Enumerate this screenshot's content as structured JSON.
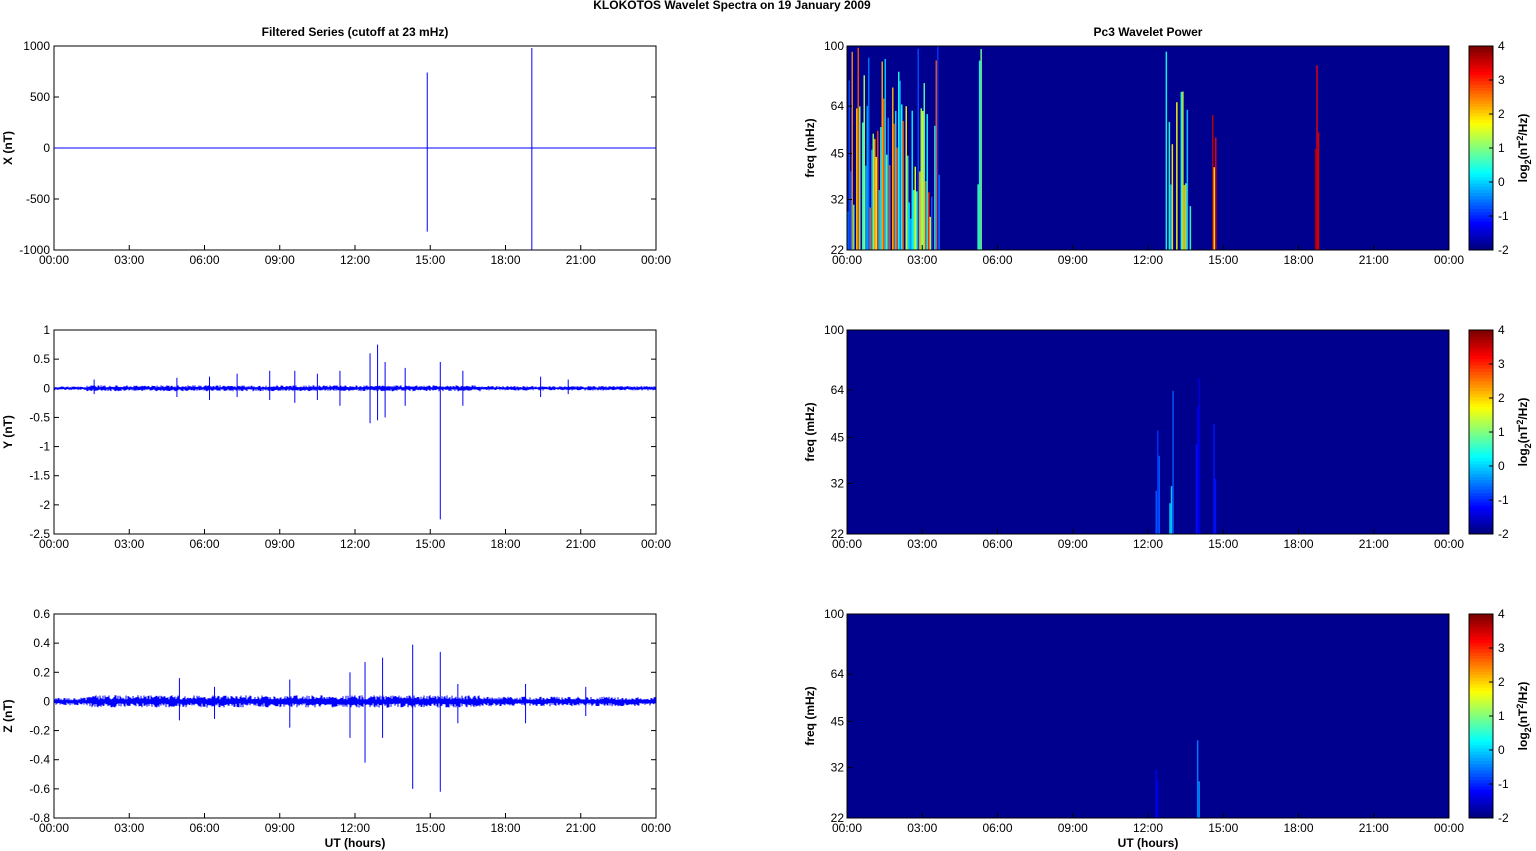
{
  "figure_title": "KLOKOTOS Wavelet Spectra on 19 January   2009",
  "left_title": "Filtered Series (cutoff at 23 mHz)",
  "right_title": "Pc3 Wavelet Power",
  "x_axis_label": "UT (hours)",
  "colors": {
    "trace": "#0000ff",
    "heat_background": "#00008f",
    "axes": "#000000"
  },
  "chart_data": [
    {
      "type": "line",
      "ylabel": "X (nT)",
      "xlabel": "",
      "x_ticks": [
        "00:00",
        "03:00",
        "06:00",
        "09:00",
        "12:00",
        "15:00",
        "18:00",
        "21:00",
        "00:00"
      ],
      "xlim_hours": [
        0,
        24
      ],
      "ylim": [
        -1000,
        1000
      ],
      "y_ticks": [
        "1000",
        "500",
        "0",
        "-500",
        "-1000"
      ],
      "spikes": [
        {
          "hour": 14.88,
          "max": 740,
          "min": -820
        },
        {
          "hour": 19.05,
          "max": 980,
          "min": -1000
        },
        {
          "hour": 2.55,
          "max": 5,
          "min": -5
        }
      ],
      "baseline_noise_amplitude": 3
    },
    {
      "type": "line",
      "ylabel": "Y (nT)",
      "xlabel": "",
      "x_ticks": [
        "00:00",
        "03:00",
        "06:00",
        "09:00",
        "12:00",
        "15:00",
        "18:00",
        "21:00",
        "00:00"
      ],
      "xlim_hours": [
        0,
        24
      ],
      "ylim": [
        -2.5,
        1
      ],
      "y_ticks": [
        "1",
        "0.5",
        "0",
        "-0.5",
        "-1",
        "-1.5",
        "-2",
        "-2.5"
      ],
      "spikes": [
        {
          "hour": 1.6,
          "max": 0.15,
          "min": -0.1
        },
        {
          "hour": 4.9,
          "max": 0.18,
          "min": -0.15
        },
        {
          "hour": 6.2,
          "max": 0.2,
          "min": -0.2
        },
        {
          "hour": 7.3,
          "max": 0.25,
          "min": -0.15
        },
        {
          "hour": 8.6,
          "max": 0.3,
          "min": -0.2
        },
        {
          "hour": 9.6,
          "max": 0.3,
          "min": -0.25
        },
        {
          "hour": 10.5,
          "max": 0.25,
          "min": -0.2
        },
        {
          "hour": 11.4,
          "max": 0.3,
          "min": -0.3
        },
        {
          "hour": 12.6,
          "max": 0.6,
          "min": -0.6
        },
        {
          "hour": 12.9,
          "max": 0.75,
          "min": -0.55
        },
        {
          "hour": 13.2,
          "max": 0.45,
          "min": -0.5
        },
        {
          "hour": 14.0,
          "max": 0.35,
          "min": -0.3
        },
        {
          "hour": 15.4,
          "max": 0.45,
          "min": -2.25
        },
        {
          "hour": 16.3,
          "max": 0.3,
          "min": -0.3
        },
        {
          "hour": 19.4,
          "max": 0.2,
          "min": -0.15
        },
        {
          "hour": 20.5,
          "max": 0.15,
          "min": -0.1
        }
      ],
      "baseline_noise_amplitude": 0.03
    },
    {
      "type": "line",
      "ylabel": "Z (nT)",
      "xlabel": "UT (hours)",
      "x_ticks": [
        "00:00",
        "03:00",
        "06:00",
        "09:00",
        "12:00",
        "15:00",
        "18:00",
        "21:00",
        "00:00"
      ],
      "xlim_hours": [
        0,
        24
      ],
      "ylim": [
        -0.8,
        0.6
      ],
      "y_ticks": [
        "0.6",
        "0.4",
        "0.2",
        "0",
        "-0.2",
        "-0.4",
        "-0.6",
        "-0.8"
      ],
      "spikes": [
        {
          "hour": 5.0,
          "max": 0.16,
          "min": -0.13
        },
        {
          "hour": 6.4,
          "max": 0.1,
          "min": -0.12
        },
        {
          "hour": 9.4,
          "max": 0.15,
          "min": -0.18
        },
        {
          "hour": 11.8,
          "max": 0.2,
          "min": -0.25
        },
        {
          "hour": 12.4,
          "max": 0.27,
          "min": -0.42
        },
        {
          "hour": 13.1,
          "max": 0.3,
          "min": -0.25
        },
        {
          "hour": 14.3,
          "max": 0.39,
          "min": -0.6
        },
        {
          "hour": 15.4,
          "max": 0.34,
          "min": -0.62
        },
        {
          "hour": 16.1,
          "max": 0.12,
          "min": -0.15
        },
        {
          "hour": 18.8,
          "max": 0.12,
          "min": -0.15
        },
        {
          "hour": 21.2,
          "max": 0.1,
          "min": -0.1
        }
      ],
      "baseline_noise_amplitude": 0.025
    },
    {
      "type": "heatmap",
      "ylabel": "freq (mHz)",
      "xlabel": "",
      "x_ticks": [
        "00:00",
        "03:00",
        "06:00",
        "09:00",
        "12:00",
        "15:00",
        "18:00",
        "21:00",
        "00:00"
      ],
      "y_ticks": [
        "100",
        "64",
        "45",
        "32",
        "22"
      ],
      "ylim_mhz": [
        22,
        100
      ],
      "y_scale": "log",
      "colorbar_label": "log2(nT2/Hz)",
      "colorbar_ticks": [
        "4",
        "3",
        "2",
        "1",
        "0",
        "-1",
        "-2"
      ],
      "clim": [
        -2,
        4
      ],
      "colormap": "jet",
      "streaks": [
        {
          "hours": [
            0.0,
            3.7
          ],
          "value_range": [
            -1,
            3
          ],
          "density": 0.9
        },
        {
          "hours": [
            4.7,
            4.8
          ],
          "value_range": [
            -1,
            0
          ],
          "density": 0.5
        },
        {
          "hours": [
            5.2,
            5.35
          ],
          "value_range": [
            0,
            1
          ],
          "density": 1
        },
        {
          "hours": [
            12.7,
            13.7
          ],
          "value_range": [
            -0.5,
            2.5
          ],
          "density": 0.7
        },
        {
          "hours": [
            14.55,
            14.7
          ],
          "value_range": [
            1,
            4
          ],
          "density": 1
        },
        {
          "hours": [
            18.65,
            18.8
          ],
          "value_range": [
            3,
            4
          ],
          "density": 1
        }
      ]
    },
    {
      "type": "heatmap",
      "ylabel": "freq (mHz)",
      "xlabel": "",
      "x_ticks": [
        "00:00",
        "03:00",
        "06:00",
        "09:00",
        "12:00",
        "15:00",
        "18:00",
        "21:00",
        "00:00"
      ],
      "y_ticks": [
        "100",
        "64",
        "45",
        "32",
        "22"
      ],
      "ylim_mhz": [
        22,
        100
      ],
      "y_scale": "log",
      "colorbar_label": "log2(nT2/Hz)",
      "colorbar_ticks": [
        "4",
        "3",
        "2",
        "1",
        "0",
        "-1",
        "-2"
      ],
      "clim": [
        -2,
        4
      ],
      "colormap": "jet",
      "streaks": [
        {
          "hours": [
            12.3,
            12.45
          ],
          "value_range": [
            -1,
            0
          ],
          "density": 1
        },
        {
          "hours": [
            12.85,
            13.0
          ],
          "value_range": [
            -1,
            0.5
          ],
          "density": 1
        },
        {
          "hours": [
            13.9,
            14.05
          ],
          "value_range": [
            -1.5,
            -1
          ],
          "density": 1
        },
        {
          "hours": [
            14.6,
            14.7
          ],
          "value_range": [
            -1.5,
            -1
          ],
          "density": 1
        }
      ]
    },
    {
      "type": "heatmap",
      "ylabel": "freq (mHz)",
      "xlabel": "UT (hours)",
      "x_ticks": [
        "00:00",
        "03:00",
        "06:00",
        "09:00",
        "12:00",
        "15:00",
        "18:00",
        "21:00",
        "00:00"
      ],
      "y_ticks": [
        "100",
        "64",
        "45",
        "32",
        "22"
      ],
      "ylim_mhz": [
        22,
        100
      ],
      "y_scale": "log",
      "colorbar_label": "log2(nT2/Hz)",
      "colorbar_ticks": [
        "4",
        "3",
        "2",
        "1",
        "0",
        "-1",
        "-2"
      ],
      "clim": [
        -2,
        4
      ],
      "colormap": "jet",
      "streaks": [
        {
          "hours": [
            12.3,
            12.4
          ],
          "value_range": [
            -1.5,
            -1
          ],
          "density": 1
        },
        {
          "hours": [
            13.95,
            14.05
          ],
          "value_range": [
            -1,
            0
          ],
          "density": 1
        }
      ]
    }
  ]
}
